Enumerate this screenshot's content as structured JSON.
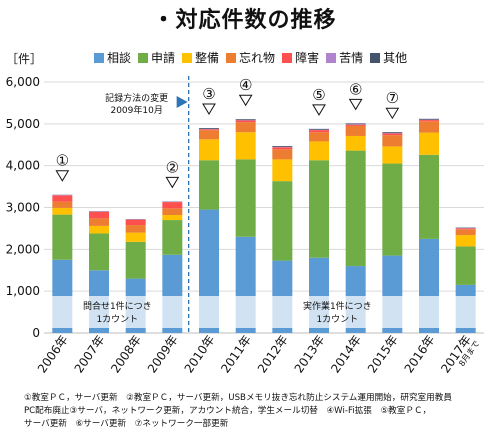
{
  "header": {
    "title": "・対応件数の推移",
    "unit": "［件］"
  },
  "annotations": {
    "method_change": [
      "記録方法の変更",
      "2009年10月"
    ],
    "count_method_before": [
      "問合せ1件につき",
      "1カウント"
    ],
    "count_method_after": [
      "実作業1件につき",
      "1カウント"
    ],
    "last_year_note": "8月まで"
  },
  "markers": [
    {
      "label": "①",
      "category": "2006年"
    },
    {
      "label": "②",
      "category": "2009年"
    },
    {
      "label": "③",
      "category": "2010年"
    },
    {
      "label": "④",
      "category": "2011年"
    },
    {
      "label": "⑤",
      "category": "2013年"
    },
    {
      "label": "⑥",
      "category": "2014年"
    },
    {
      "label": "⑦",
      "category": "2015年"
    }
  ],
  "notes": [
    "①教室ＰＣ，サーバ更新　②教室ＰＣ，サーバ更新，USBメモリ抜き忘れ防止システム運用開始，研究室用教員",
    "PC配布廃止③サーバ，ネットワーク更新，アカウント統合，学生メール切替　④Wi-Fi拡張　⑤教室ＰＣ，",
    "サーバ更新　⑥サーバ更新　⑦ネットワーク一部更新"
  ],
  "chart_data": {
    "type": "bar",
    "stacked": true,
    "ylim": [
      0,
      6000
    ],
    "yticks": [
      "0",
      "1,000",
      "2,000",
      "3,000",
      "4,000",
      "5,000",
      "6,000"
    ],
    "categories": [
      "2006年",
      "2007年",
      "2008年",
      "2009年",
      "2010年",
      "2011年",
      "2012年",
      "2013年",
      "2014年",
      "2015年",
      "2016年",
      "2017年"
    ],
    "series": [
      {
        "name": "相談",
        "color": "#5b9bd5",
        "values": [
          1750,
          1500,
          1300,
          1870,
          2950,
          2300,
          1730,
          1800,
          1600,
          1850,
          2250,
          1150
        ]
      },
      {
        "name": "申請",
        "color": "#70ad47",
        "values": [
          1080,
          880,
          880,
          830,
          1180,
          1850,
          1900,
          2330,
          2760,
          2200,
          2010,
          920
        ]
      },
      {
        "name": "整備",
        "color": "#ffc000",
        "values": [
          160,
          180,
          220,
          120,
          500,
          650,
          520,
          450,
          350,
          410,
          530,
          270
        ]
      },
      {
        "name": "忘れ物",
        "color": "#ed7d31",
        "values": [
          150,
          180,
          180,
          160,
          220,
          240,
          240,
          220,
          240,
          270,
          270,
          140
        ]
      },
      {
        "name": "障害",
        "color": "#ff5050",
        "values": [
          150,
          160,
          130,
          150,
          20,
          40,
          50,
          50,
          30,
          40,
          30,
          20
        ]
      },
      {
        "name": "苦情",
        "color": "#b084cc",
        "values": [
          10,
          10,
          10,
          10,
          10,
          10,
          10,
          10,
          10,
          10,
          10,
          10
        ]
      },
      {
        "name": "其他",
        "color": "#44546a",
        "values": [
          5,
          5,
          5,
          5,
          20,
          20,
          20,
          20,
          20,
          20,
          20,
          10
        ]
      }
    ]
  }
}
